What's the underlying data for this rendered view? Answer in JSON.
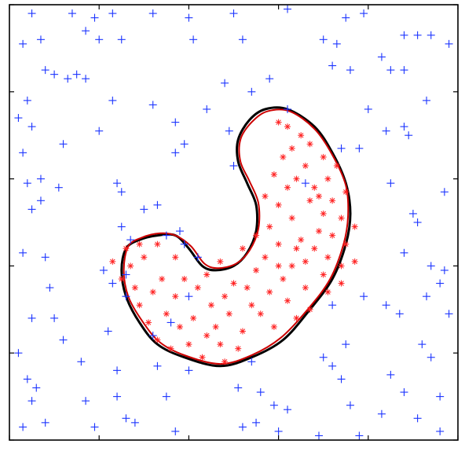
{
  "chart_data": {
    "type": "scatter",
    "title": "",
    "xlabel": "",
    "ylabel": "",
    "xlim": [
      0,
      100
    ],
    "ylim": [
      0,
      100
    ],
    "grid": false,
    "legend": "none",
    "x_ticks": [
      0,
      20,
      40,
      60,
      80,
      100
    ],
    "y_ticks": [
      0,
      20,
      40,
      60,
      80,
      100
    ],
    "colors": {
      "outside": "#1a33ff",
      "inside": "#ff2222",
      "boundary_true": "#000000",
      "boundary_estimated": "#cc0000"
    },
    "series": [
      {
        "marker": "plus",
        "points": [
          [
            5,
            98
          ],
          [
            14,
            98
          ],
          [
            19,
            97
          ],
          [
            23,
            98
          ],
          [
            32,
            98
          ],
          [
            40,
            97
          ],
          [
            50,
            98
          ],
          [
            62,
            99
          ],
          [
            75,
            97
          ],
          [
            79,
            98
          ],
          [
            3,
            91
          ],
          [
            7,
            92
          ],
          [
            17,
            94
          ],
          [
            20,
            92
          ],
          [
            25,
            92
          ],
          [
            41,
            92
          ],
          [
            52,
            92
          ],
          [
            70,
            92
          ],
          [
            73,
            91
          ],
          [
            88,
            93
          ],
          [
            91,
            93
          ],
          [
            94,
            93
          ],
          [
            98,
            91
          ],
          [
            8,
            85
          ],
          [
            10,
            84
          ],
          [
            13,
            83
          ],
          [
            15,
            84
          ],
          [
            17,
            83
          ],
          [
            72,
            86
          ],
          [
            76,
            85
          ],
          [
            83,
            88
          ],
          [
            85,
            85
          ],
          [
            88,
            85
          ],
          [
            4,
            78
          ],
          [
            23,
            78
          ],
          [
            32,
            77
          ],
          [
            48,
            82
          ],
          [
            58,
            83
          ],
          [
            54,
            80
          ],
          [
            93,
            78
          ],
          [
            80,
            76
          ],
          [
            2,
            74
          ],
          [
            5,
            72
          ],
          [
            12,
            68
          ],
          [
            20,
            71
          ],
          [
            37,
            73
          ],
          [
            44,
            76
          ],
          [
            62,
            76
          ],
          [
            88,
            72
          ],
          [
            89,
            70
          ],
          [
            3,
            66
          ],
          [
            39,
            68
          ],
          [
            37,
            66
          ],
          [
            50,
            63
          ],
          [
            49,
            71
          ],
          [
            74,
            67
          ],
          [
            78,
            67
          ],
          [
            84,
            71
          ],
          [
            4,
            59
          ],
          [
            7,
            60
          ],
          [
            11,
            58
          ],
          [
            24,
            59
          ],
          [
            25,
            57
          ],
          [
            33,
            54
          ],
          [
            66,
            59
          ],
          [
            85,
            59
          ],
          [
            97,
            57
          ],
          [
            5,
            53
          ],
          [
            7,
            55
          ],
          [
            30,
            53
          ],
          [
            90,
            52
          ],
          [
            91,
            50
          ],
          [
            25,
            49
          ],
          [
            35,
            47
          ],
          [
            27,
            46
          ],
          [
            38,
            48
          ],
          [
            39,
            45
          ],
          [
            3,
            43
          ],
          [
            8,
            42
          ],
          [
            21,
            39
          ],
          [
            26,
            38
          ],
          [
            42,
            42
          ],
          [
            88,
            43
          ],
          [
            94,
            40
          ],
          [
            97,
            39
          ],
          [
            9,
            35
          ],
          [
            23,
            36
          ],
          [
            26,
            33
          ],
          [
            40,
            33
          ],
          [
            79,
            33
          ],
          [
            84,
            31
          ],
          [
            87,
            29
          ],
          [
            93,
            33
          ],
          [
            96,
            36
          ],
          [
            5,
            28
          ],
          [
            10,
            28
          ],
          [
            12,
            23
          ],
          [
            22,
            25
          ],
          [
            32,
            24
          ],
          [
            36,
            27
          ],
          [
            72,
            31
          ],
          [
            98,
            29
          ],
          [
            2,
            20
          ],
          [
            16,
            18
          ],
          [
            24,
            16
          ],
          [
            70,
            19
          ],
          [
            75,
            22
          ],
          [
            92,
            22
          ],
          [
            94,
            19
          ],
          [
            85,
            15
          ],
          [
            4,
            14
          ],
          [
            6,
            12
          ],
          [
            33,
            17
          ],
          [
            40,
            16
          ],
          [
            54,
            18
          ],
          [
            72,
            17
          ],
          [
            74,
            14
          ],
          [
            88,
            11
          ],
          [
            5,
            9
          ],
          [
            17,
            9
          ],
          [
            24,
            10
          ],
          [
            35,
            10
          ],
          [
            51,
            12
          ],
          [
            56,
            11
          ],
          [
            59,
            8
          ],
          [
            62,
            7
          ],
          [
            76,
            8
          ],
          [
            83,
            6
          ],
          [
            96,
            10
          ],
          [
            3,
            3
          ],
          [
            8,
            4
          ],
          [
            19,
            3
          ],
          [
            26,
            5
          ],
          [
            28,
            4
          ],
          [
            37,
            2
          ],
          [
            52,
            3
          ],
          [
            55,
            4
          ],
          [
            60,
            2
          ],
          [
            69,
            1
          ],
          [
            78,
            1
          ],
          [
            91,
            5
          ],
          [
            96,
            2
          ]
        ]
      },
      {
        "marker": "asterisk",
        "points": [
          [
            60,
            73
          ],
          [
            62,
            72
          ],
          [
            65,
            70
          ],
          [
            67,
            68
          ],
          [
            63,
            67
          ],
          [
            61,
            65
          ],
          [
            66,
            63
          ],
          [
            70,
            65
          ],
          [
            64,
            60
          ],
          [
            68,
            58
          ],
          [
            71,
            60
          ],
          [
            73,
            63
          ],
          [
            72,
            55
          ],
          [
            75,
            57
          ],
          [
            67,
            55
          ],
          [
            70,
            52
          ],
          [
            74,
            51
          ],
          [
            62,
            58
          ],
          [
            59,
            61
          ],
          [
            69,
            48
          ],
          [
            72,
            47
          ],
          [
            65,
            46
          ],
          [
            68,
            44
          ],
          [
            75,
            45
          ],
          [
            77,
            49
          ],
          [
            71,
            42
          ],
          [
            66,
            41
          ],
          [
            63,
            40
          ],
          [
            74,
            40
          ],
          [
            70,
            38
          ],
          [
            61,
            37
          ],
          [
            66,
            35
          ],
          [
            71,
            34
          ],
          [
            74,
            36
          ],
          [
            77,
            41
          ],
          [
            58,
            34
          ],
          [
            62,
            32
          ],
          [
            67,
            30
          ],
          [
            64,
            28
          ],
          [
            56,
            29
          ],
          [
            59,
            26
          ],
          [
            54,
            31
          ],
          [
            52,
            25
          ],
          [
            49,
            29
          ],
          [
            46,
            26
          ],
          [
            51,
            21
          ],
          [
            47,
            22
          ],
          [
            44,
            24
          ],
          [
            48,
            18
          ],
          [
            43,
            19
          ],
          [
            40,
            22
          ],
          [
            41,
            28
          ],
          [
            38,
            26
          ],
          [
            35,
            29
          ],
          [
            36,
            21
          ],
          [
            33,
            23
          ],
          [
            31,
            27
          ],
          [
            29,
            31
          ],
          [
            32,
            34
          ],
          [
            28,
            35
          ],
          [
            27,
            40
          ],
          [
            30,
            42
          ],
          [
            34,
            37
          ],
          [
            37,
            33
          ],
          [
            39,
            37
          ],
          [
            25,
            37
          ],
          [
            23,
            41
          ],
          [
            26,
            44
          ],
          [
            29,
            45
          ],
          [
            33,
            45
          ],
          [
            37,
            42
          ],
          [
            42,
            35
          ],
          [
            45,
            31
          ],
          [
            50,
            36
          ],
          [
            55,
            39
          ],
          [
            53,
            35
          ],
          [
            57,
            42
          ],
          [
            60,
            45
          ],
          [
            58,
            49
          ],
          [
            63,
            51
          ],
          [
            60,
            54
          ],
          [
            57,
            56
          ],
          [
            55,
            47
          ],
          [
            52,
            44
          ],
          [
            47,
            41
          ],
          [
            44,
            38
          ],
          [
            48,
            33
          ],
          [
            60,
            40
          ],
          [
            64,
            44
          ],
          [
            69,
            56
          ]
        ]
      }
    ],
    "boundaries": [
      {
        "name": "",
        "points": [
          [
            53.5,
            73.5
          ],
          [
            57,
            76
          ],
          [
            62,
            76
          ],
          [
            68,
            72
          ],
          [
            72,
            66
          ],
          [
            75,
            59
          ],
          [
            76,
            52
          ],
          [
            75,
            45
          ],
          [
            72,
            37
          ],
          [
            67,
            30
          ],
          [
            61,
            23
          ],
          [
            54,
            19
          ],
          [
            47,
            17
          ],
          [
            39,
            19
          ],
          [
            33,
            22
          ],
          [
            29,
            27
          ],
          [
            26,
            33
          ],
          [
            25,
            39
          ],
          [
            26,
            44
          ],
          [
            29,
            46
          ],
          [
            33,
            47
          ],
          [
            37,
            47
          ],
          [
            40,
            44
          ],
          [
            43,
            40
          ],
          [
            46,
            39
          ],
          [
            50,
            40
          ],
          [
            53,
            43
          ],
          [
            55,
            48
          ],
          [
            55,
            54
          ],
          [
            53,
            59
          ],
          [
            51,
            64
          ],
          [
            51,
            69
          ],
          [
            53.5,
            73.5
          ]
        ]
      },
      {
        "name": "",
        "points": [
          [
            54,
            73
          ],
          [
            57.5,
            75.5
          ],
          [
            62.5,
            75.5
          ],
          [
            68,
            71.5
          ],
          [
            72,
            65.5
          ],
          [
            75,
            58.5
          ],
          [
            75.5,
            51.5
          ],
          [
            74.5,
            45
          ],
          [
            71.5,
            37
          ],
          [
            66.5,
            30
          ],
          [
            60.5,
            23.5
          ],
          [
            54,
            19.5
          ],
          [
            47,
            17.5
          ],
          [
            39,
            19.5
          ],
          [
            33.5,
            22.5
          ],
          [
            29.5,
            27.5
          ],
          [
            26.5,
            33
          ],
          [
            25.5,
            39
          ],
          [
            26.5,
            44.5
          ],
          [
            29.5,
            46.5
          ],
          [
            33.5,
            47.5
          ],
          [
            37,
            47
          ],
          [
            40.5,
            44.5
          ],
          [
            43.5,
            40.5
          ],
          [
            46.5,
            39.5
          ],
          [
            50.5,
            40.5
          ],
          [
            53.5,
            43.5
          ],
          [
            55.5,
            48.5
          ],
          [
            55.5,
            54.5
          ],
          [
            53.5,
            59.5
          ],
          [
            51.5,
            64
          ],
          [
            51.5,
            69
          ],
          [
            54,
            73
          ]
        ]
      }
    ]
  }
}
